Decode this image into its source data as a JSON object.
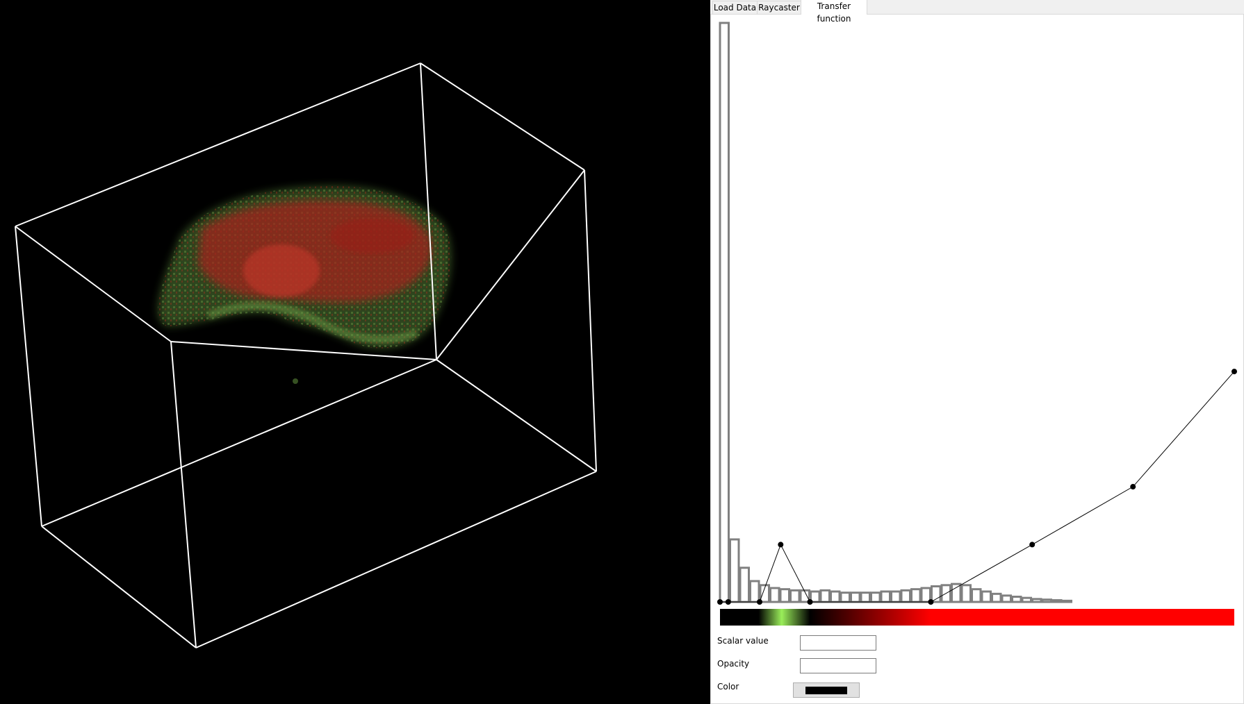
{
  "tabs": [
    {
      "label": "Load Data",
      "active": false
    },
    {
      "label": "Raycaster",
      "active": false
    },
    {
      "label": "Transfer function",
      "active": true
    }
  ],
  "fields": {
    "scalar_label": "Scalar value",
    "scalar_value": "",
    "opacity_label": "Opacity",
    "opacity_value": "",
    "color_label": "Color",
    "color_value": "#000000"
  },
  "viewport": {
    "background": "#000000",
    "box_color": "#ffffff",
    "volume_colors": [
      "#c0201a",
      "#5b8a3a"
    ]
  },
  "transfer_function": {
    "histogram_bars": [
      1.0,
      0.108,
      0.059,
      0.036,
      0.029,
      0.024,
      0.022,
      0.02,
      0.02,
      0.018,
      0.02,
      0.018,
      0.016,
      0.016,
      0.016,
      0.016,
      0.018,
      0.018,
      0.02,
      0.022,
      0.024,
      0.027,
      0.029,
      0.031,
      0.029,
      0.022,
      0.018,
      0.014,
      0.011,
      0.009,
      0.007,
      0.005,
      0.004,
      0.003,
      0.002
    ],
    "opacity_points": [
      {
        "scalar": 0.0,
        "opacity": 0.0
      },
      {
        "scalar": 0.016,
        "opacity": 0.0
      },
      {
        "scalar": 0.077,
        "opacity": 0.0
      },
      {
        "scalar": 0.118,
        "opacity": 0.099
      },
      {
        "scalar": 0.175,
        "opacity": 0.0
      },
      {
        "scalar": 0.41,
        "opacity": 0.0
      },
      {
        "scalar": 0.607,
        "opacity": 0.099
      },
      {
        "scalar": 0.803,
        "opacity": 0.199
      },
      {
        "scalar": 1.0,
        "opacity": 0.398
      }
    ],
    "color_stops": [
      {
        "pos": 0.0,
        "color": "#000000"
      },
      {
        "pos": 0.075,
        "color": "#000000"
      },
      {
        "pos": 0.12,
        "color": "#9aee5a"
      },
      {
        "pos": 0.175,
        "color": "#000000"
      },
      {
        "pos": 0.41,
        "color": "#ff0000"
      },
      {
        "pos": 1.0,
        "color": "#ff0000"
      }
    ],
    "histogram_color": "#808080",
    "line_color": "#000000",
    "point_color": "#000000"
  }
}
